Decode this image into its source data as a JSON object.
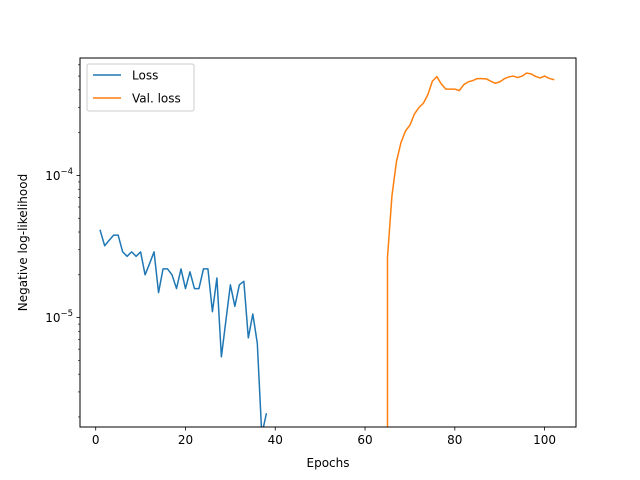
{
  "chart_data": {
    "type": "line",
    "xlabel": "Epochs",
    "ylabel": "Negative log-likelihood",
    "yscale": "log",
    "xlim": [
      -3.5,
      107
    ],
    "ylim": [
      1.7e-06,
      0.00067
    ],
    "grid": false,
    "legend_position": "top-left",
    "x_ticks": [
      0,
      20,
      40,
      60,
      80,
      100
    ],
    "x_tick_labels": [
      "0",
      "20",
      "40",
      "60",
      "80",
      "100"
    ],
    "y_ticks": [
      1e-05,
      0.0001
    ],
    "y_tick_labels": [
      {
        "base": "10",
        "exp": "−5"
      },
      {
        "base": "10",
        "exp": "−4"
      }
    ],
    "series": [
      {
        "name": "Loss",
        "color": "#1f77b4",
        "x": [
          1,
          2,
          3,
          4,
          5,
          6,
          7,
          8,
          9,
          10,
          11,
          12,
          13,
          14,
          15,
          16,
          17,
          18,
          19,
          20,
          21,
          22,
          23,
          24,
          25,
          26,
          27,
          28,
          29,
          30,
          31,
          32,
          33,
          34,
          35,
          36,
          37,
          38
        ],
        "y": [
          4.1e-05,
          3.2e-05,
          3.5e-05,
          3.8e-05,
          3.8e-05,
          2.9e-05,
          2.7e-05,
          2.9e-05,
          2.7e-05,
          2.9e-05,
          2e-05,
          2.4e-05,
          2.9e-05,
          1.5e-05,
          2.2e-05,
          2.2e-05,
          2e-05,
          1.6e-05,
          2.2e-05,
          1.6e-05,
          2.1e-05,
          1.6e-05,
          1.6e-05,
          2.2e-05,
          2.2e-05,
          1.1e-05,
          1.9e-05,
          5.3e-06,
          9.5e-06,
          1.7e-05,
          1.2e-05,
          1.7e-05,
          1.8e-05,
          7.2e-06,
          1.06e-05,
          6.6e-06,
          1.5e-06,
          2.1e-06
        ]
      },
      {
        "name": "Val. loss",
        "color": "#ff7f0e",
        "x": [
          65,
          65,
          66,
          67,
          68,
          69,
          70,
          71,
          72,
          73,
          74,
          75,
          76,
          77,
          78,
          79,
          80,
          81,
          82,
          83,
          84,
          85,
          86,
          87,
          88,
          89,
          90,
          91,
          92,
          93,
          94,
          95,
          96,
          97,
          98,
          99,
          100,
          101,
          102
        ],
        "y": [
          1.5e-06,
          2.65e-05,
          7.2e-05,
          0.000125,
          0.00017,
          0.000205,
          0.000226,
          0.00027,
          0.0003,
          0.000322,
          0.00037,
          0.00046,
          0.000495,
          0.00044,
          0.000405,
          0.000405,
          0.000405,
          0.000395,
          0.000435,
          0.000455,
          0.000465,
          0.00048,
          0.00048,
          0.000478,
          0.00046,
          0.000445,
          0.000455,
          0.000478,
          0.000493,
          0.0005,
          0.000488,
          0.0005,
          0.000525,
          0.000518,
          0.000497,
          0.000485,
          0.0005,
          0.000482,
          0.000472
        ]
      }
    ]
  }
}
